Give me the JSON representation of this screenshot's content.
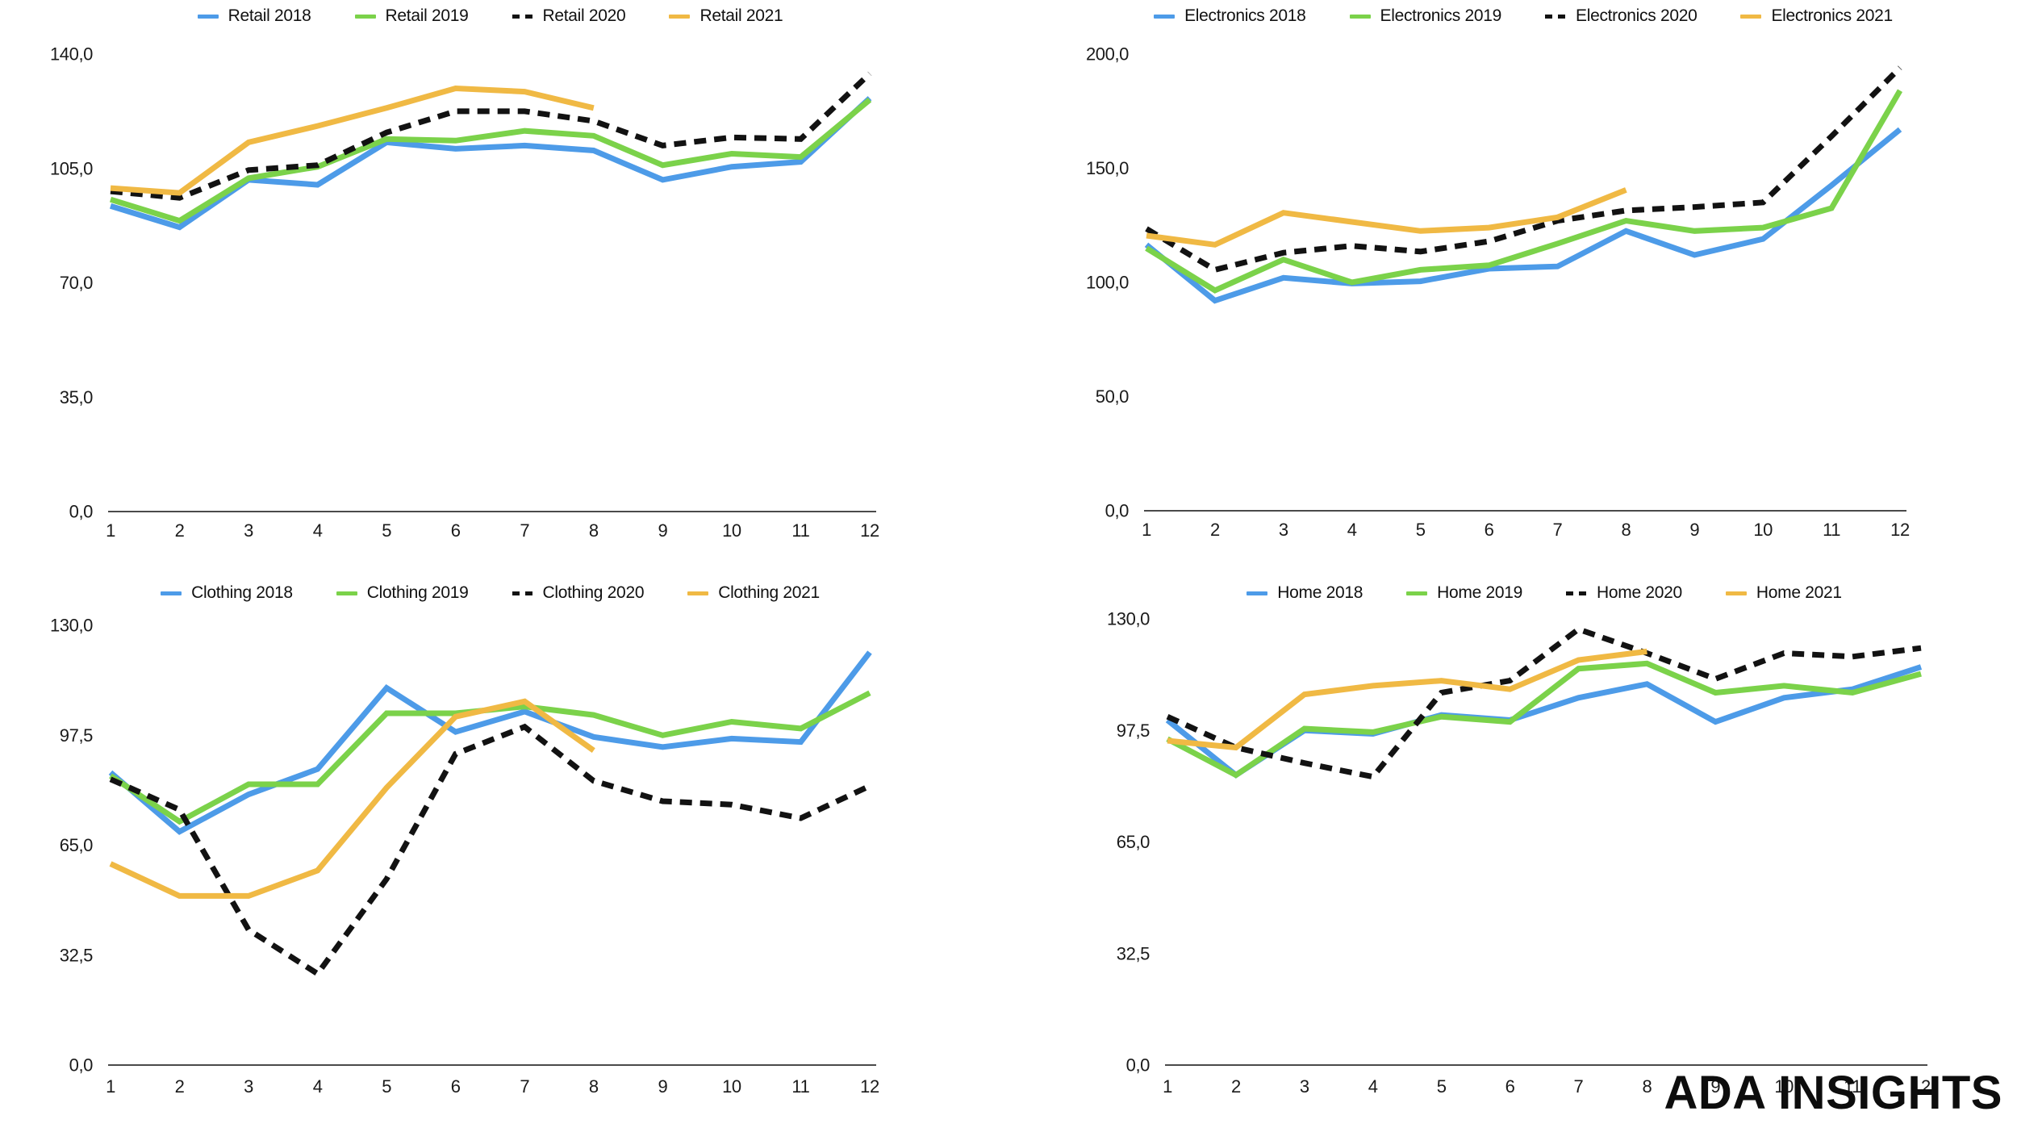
{
  "watermark": "ADA INSIGHTS",
  "palette": {
    "series2018": "#4d9be8",
    "series2019": "#7bd24a",
    "series2020": "#121212",
    "series2021": "#f0b944"
  },
  "x_labels": [
    "1",
    "2",
    "3",
    "4",
    "5",
    "6",
    "7",
    "8",
    "9",
    "10",
    "11",
    "12"
  ],
  "chart_data": [
    {
      "type": "line",
      "name": "retail",
      "x": [
        1,
        2,
        3,
        4,
        5,
        6,
        7,
        8,
        9,
        10,
        11,
        12
      ],
      "ylim": [
        0,
        140
      ],
      "y_ticks": [
        0,
        35,
        70,
        105,
        140
      ],
      "y_tick_labels": [
        "0,0",
        "35,0",
        "70,0",
        "105,0",
        "140,0"
      ],
      "legend_position": "top",
      "grid": false,
      "series": [
        {
          "name": "Retail 2018",
          "color": "series2018",
          "dashed": false,
          "values": [
            93.5,
            87,
            101.5,
            100,
            113,
            111,
            112,
            110.5,
            101.5,
            105.5,
            107,
            126.5
          ]
        },
        {
          "name": "Retail 2019",
          "color": "series2019",
          "dashed": false,
          "values": [
            95.5,
            89,
            102,
            105.5,
            114,
            113.5,
            116.5,
            115,
            106,
            109.5,
            108.5,
            126
          ]
        },
        {
          "name": "Retail 2020",
          "color": "series2020",
          "dashed": true,
          "values": [
            98,
            96,
            104.5,
            106,
            116,
            122.5,
            122.5,
            119.5,
            112,
            114.5,
            114,
            134
          ]
        },
        {
          "name": "Retail 2021",
          "color": "series2021",
          "dashed": false,
          "values": [
            99,
            97.5,
            113,
            118,
            123.5,
            129.5,
            128.5,
            123.5
          ]
        }
      ]
    },
    {
      "type": "line",
      "name": "electronics",
      "x": [
        1,
        2,
        3,
        4,
        5,
        6,
        7,
        8,
        9,
        10,
        11,
        12
      ],
      "ylim": [
        0,
        200
      ],
      "y_ticks": [
        0,
        50,
        100,
        150,
        200
      ],
      "y_tick_labels": [
        "0,0",
        "50,0",
        "100,0",
        "150,0",
        "200,0"
      ],
      "legend_position": "top",
      "grid": false,
      "series": [
        {
          "name": "Electronics 2018",
          "color": "series2018",
          "dashed": false,
          "values": [
            116.5,
            92,
            102,
            99.5,
            100.5,
            106,
            107,
            122.5,
            112,
            119,
            142.5,
            167
          ]
        },
        {
          "name": "Electronics 2019",
          "color": "series2019",
          "dashed": false,
          "values": [
            115,
            96.5,
            110,
            100,
            105.5,
            107.5,
            117,
            127,
            122.5,
            124,
            132.5,
            184
          ]
        },
        {
          "name": "Electronics 2020",
          "color": "series2020",
          "dashed": true,
          "values": [
            123.5,
            105.5,
            113,
            116,
            113.5,
            118,
            127,
            131.5,
            133,
            135,
            164,
            194
          ]
        },
        {
          "name": "Electronics 2021",
          "color": "series2021",
          "dashed": false,
          "values": [
            120.5,
            116.5,
            130.5,
            126.5,
            122.5,
            124,
            128.5,
            140.5
          ]
        }
      ]
    },
    {
      "type": "line",
      "name": "clothing",
      "x": [
        1,
        2,
        3,
        4,
        5,
        6,
        7,
        8,
        9,
        10,
        11,
        12
      ],
      "ylim": [
        0,
        130
      ],
      "y_ticks": [
        0,
        32.5,
        65,
        97.5,
        130
      ],
      "y_tick_labels": [
        "0,0",
        "32,5",
        "65,0",
        "97,5",
        "130,0"
      ],
      "legend_position": "top",
      "grid": false,
      "series": [
        {
          "name": "Clothing 2018",
          "color": "series2018",
          "dashed": false,
          "values": [
            86.5,
            69,
            80,
            87.5,
            111.5,
            98.5,
            104.5,
            97,
            94,
            96.5,
            95.5,
            122
          ]
        },
        {
          "name": "Clothing 2019",
          "color": "series2019",
          "dashed": false,
          "values": [
            85.5,
            72,
            83,
            83,
            104,
            104,
            106,
            103.5,
            97.5,
            101.5,
            99.5,
            110
          ]
        },
        {
          "name": "Clothing 2020",
          "color": "series2020",
          "dashed": true,
          "values": [
            84.5,
            75.5,
            40,
            27,
            55,
            92,
            100,
            84,
            78,
            77,
            73,
            82.5
          ]
        },
        {
          "name": "Clothing 2021",
          "color": "series2021",
          "dashed": false,
          "values": [
            59.5,
            50,
            50,
            57.5,
            82,
            103,
            107.5,
            93
          ]
        }
      ]
    },
    {
      "type": "line",
      "name": "home",
      "x": [
        1,
        2,
        3,
        4,
        5,
        6,
        7,
        8,
        9,
        10,
        11,
        12
      ],
      "ylim": [
        0,
        130
      ],
      "y_ticks": [
        0,
        32.5,
        65,
        97.5,
        130
      ],
      "y_tick_labels": [
        "0,0",
        "32,5",
        "65,0",
        "97,5",
        "130,0"
      ],
      "legend_position": "top",
      "grid": false,
      "series": [
        {
          "name": "Home 2018",
          "color": "series2018",
          "dashed": false,
          "values": [
            100.5,
            84.5,
            97.5,
            96.5,
            102,
            100.5,
            107,
            111,
            100,
            107,
            109.5,
            116
          ]
        },
        {
          "name": "Home 2019",
          "color": "series2019",
          "dashed": false,
          "values": [
            95,
            84.5,
            98,
            97,
            101.5,
            100,
            115.5,
            117,
            108.5,
            110.5,
            108.5,
            114
          ]
        },
        {
          "name": "Home 2020",
          "color": "series2020",
          "dashed": true,
          "values": [
            101.5,
            92.5,
            88,
            84,
            108.5,
            112,
            127,
            120,
            112.5,
            120,
            119,
            121.5
          ]
        },
        {
          "name": "Home 2021",
          "color": "series2021",
          "dashed": false,
          "values": [
            94.5,
            92.5,
            108,
            110.5,
            112,
            109.5,
            118,
            120.5
          ]
        }
      ]
    }
  ]
}
